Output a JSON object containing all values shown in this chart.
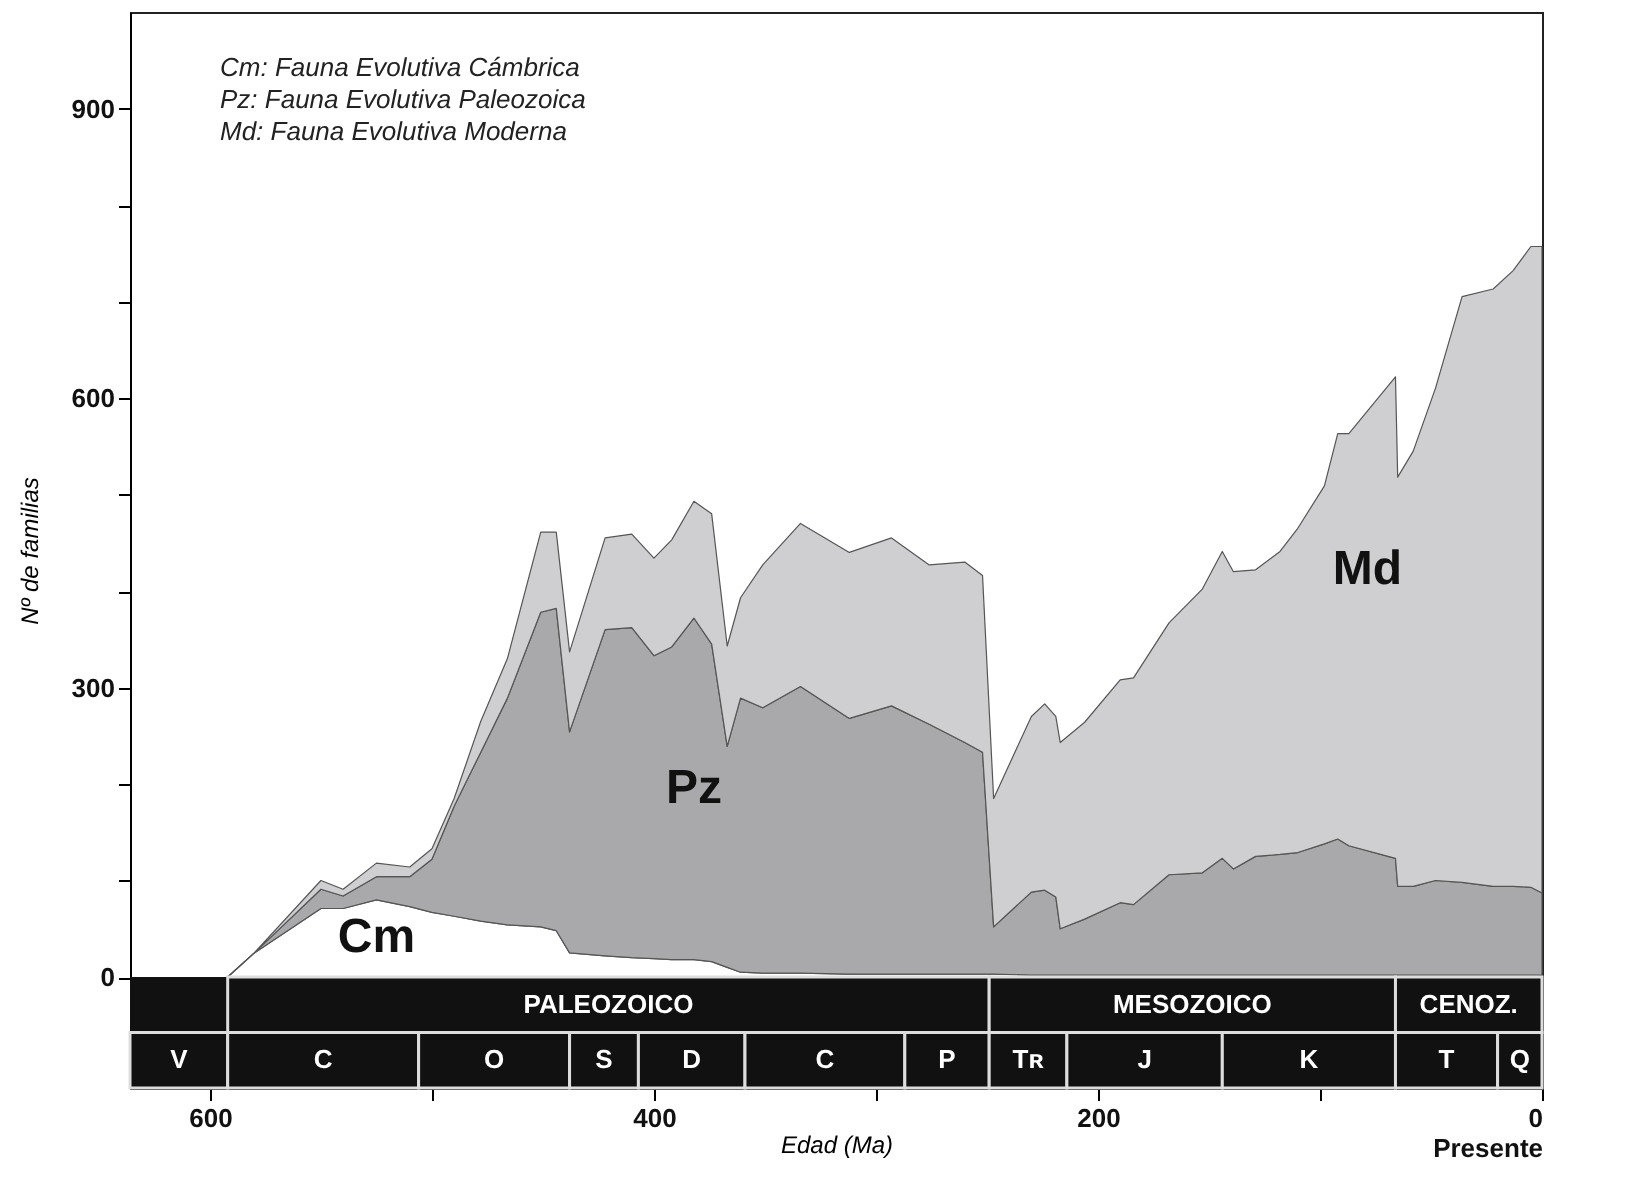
{
  "chart_data": {
    "type": "area",
    "stacked": true,
    "xlabel": "Edad (Ma)",
    "ylabel": "Nº de familias",
    "x": [
      592,
      580,
      550,
      540,
      525,
      510,
      500,
      490,
      478,
      466,
      451,
      444,
      438,
      422,
      410,
      400,
      392,
      382,
      374,
      367,
      361,
      351,
      334,
      312,
      293,
      276,
      260,
      252,
      247,
      230,
      224,
      219,
      217,
      206,
      190,
      184,
      168,
      153,
      144,
      139,
      129,
      118,
      110,
      98,
      92,
      87,
      66,
      65,
      58,
      48,
      36,
      22,
      13,
      5,
      0
    ],
    "series": [
      {
        "name": "Cm",
        "color": "#ffffff",
        "values": [
          0,
          25,
          71,
          71,
          80,
          73,
          67,
          63,
          58,
          54,
          52,
          48,
          25,
          22,
          20,
          19,
          18,
          18,
          16,
          10,
          5,
          4,
          4,
          3,
          3,
          3,
          3,
          3,
          3,
          2,
          2,
          2,
          2,
          2,
          2,
          2,
          2,
          2,
          2,
          2,
          2,
          2,
          2,
          2,
          2,
          2,
          2,
          2,
          2,
          2,
          2,
          2,
          2,
          2,
          2
        ]
      },
      {
        "name": "Pz",
        "color": "#a9a9ab",
        "values": [
          0,
          0,
          20,
          13,
          24,
          31,
          55,
          114,
          175,
          235,
          326,
          334,
          229,
          338,
          342,
          314,
          324,
          354,
          329,
          229,
          284,
          275,
          297,
          265,
          278,
          259,
          240,
          230,
          49,
          86,
          88,
          81,
          48,
          58,
          75,
          73,
          104,
          106,
          121,
          110,
          123,
          125,
          127,
          136,
          141,
          134,
          121,
          92,
          92,
          98,
          96,
          92,
          92,
          91,
          85
        ]
      },
      {
        "name": "Md",
        "color": "#cfcfd1",
        "values": [
          0,
          0,
          9,
          7,
          14,
          10,
          11,
          8,
          32,
          41,
          83,
          79,
          83,
          95,
          97,
          101,
          111,
          121,
          135,
          104,
          104,
          148,
          169,
          172,
          174,
          165,
          187,
          183,
          133,
          182,
          193,
          187,
          193,
          204,
          231,
          235,
          261,
          294,
          318,
          308,
          297,
          314,
          336,
          371,
          420,
          427,
          499,
          424,
          451,
          510,
          607,
          619,
          638,
          664,
          670
        ]
      }
    ],
    "xlim": [
      636,
      0
    ],
    "xticks": [
      600,
      {
        "value": 500,
        "label": null
      },
      400,
      {
        "value": 300,
        "label": null
      },
      200,
      {
        "value": 100,
        "label": null
      },
      {
        "value": 0,
        "label": "0\nPresente"
      }
    ],
    "ylim": [
      -115,
      1000
    ],
    "yticks": [
      0,
      {
        "value": 100,
        "label": null
      },
      {
        "value": 200,
        "label": null
      },
      300,
      {
        "value": 400,
        "label": null
      },
      {
        "value": 500,
        "label": null
      },
      600,
      {
        "value": 700,
        "label": null
      },
      {
        "value": 800,
        "label": null
      },
      900
    ],
    "annotations": [
      "Cm: Fauna Evolutiva Cámbrica",
      "Pz: Fauna Evolutiva Paleozoica",
      "Md: Fauna Evolutiva Moderna"
    ],
    "bands": [
      {
        "axis": "x",
        "from": 592,
        "to": 249,
        "label": "PALEOZOICO",
        "color": "#111111"
      },
      {
        "axis": "x",
        "from": 249,
        "to": 66,
        "label": "MESOZOICO",
        "color": "#111111"
      },
      {
        "axis": "x",
        "from": 66,
        "to": 0,
        "label": "CENOZ.",
        "color": "#111111"
      },
      {
        "axis": "x",
        "from": 636,
        "to": 592,
        "label": "V",
        "color": "#111111"
      },
      {
        "axis": "x",
        "from": 592,
        "to": 506,
        "label": "C",
        "color": "#111111"
      },
      {
        "axis": "x",
        "from": 506,
        "to": 438,
        "label": "O",
        "color": "#111111"
      },
      {
        "axis": "x",
        "from": 438,
        "to": 407,
        "label": "S",
        "color": "#111111"
      },
      {
        "axis": "x",
        "from": 407,
        "to": 359,
        "label": "D",
        "color": "#111111"
      },
      {
        "axis": "x",
        "from": 359,
        "to": 287,
        "label": "C",
        "color": "#111111"
      },
      {
        "axis": "x",
        "from": 287,
        "to": 249,
        "label": "P",
        "color": "#111111"
      },
      {
        "axis": "x",
        "from": 249,
        "to": 214,
        "label": "Tʀ",
        "color": "#111111"
      },
      {
        "axis": "x",
        "from": 214,
        "to": 144,
        "label": "J",
        "color": "#111111"
      },
      {
        "axis": "x",
        "from": 144,
        "to": 66,
        "label": "K",
        "color": "#111111"
      },
      {
        "axis": "x",
        "from": 66,
        "to": 20,
        "label": "T",
        "color": "#111111"
      },
      {
        "axis": "x",
        "from": 20,
        "to": 0,
        "label": "Q",
        "color": "#111111"
      }
    ]
  }
}
